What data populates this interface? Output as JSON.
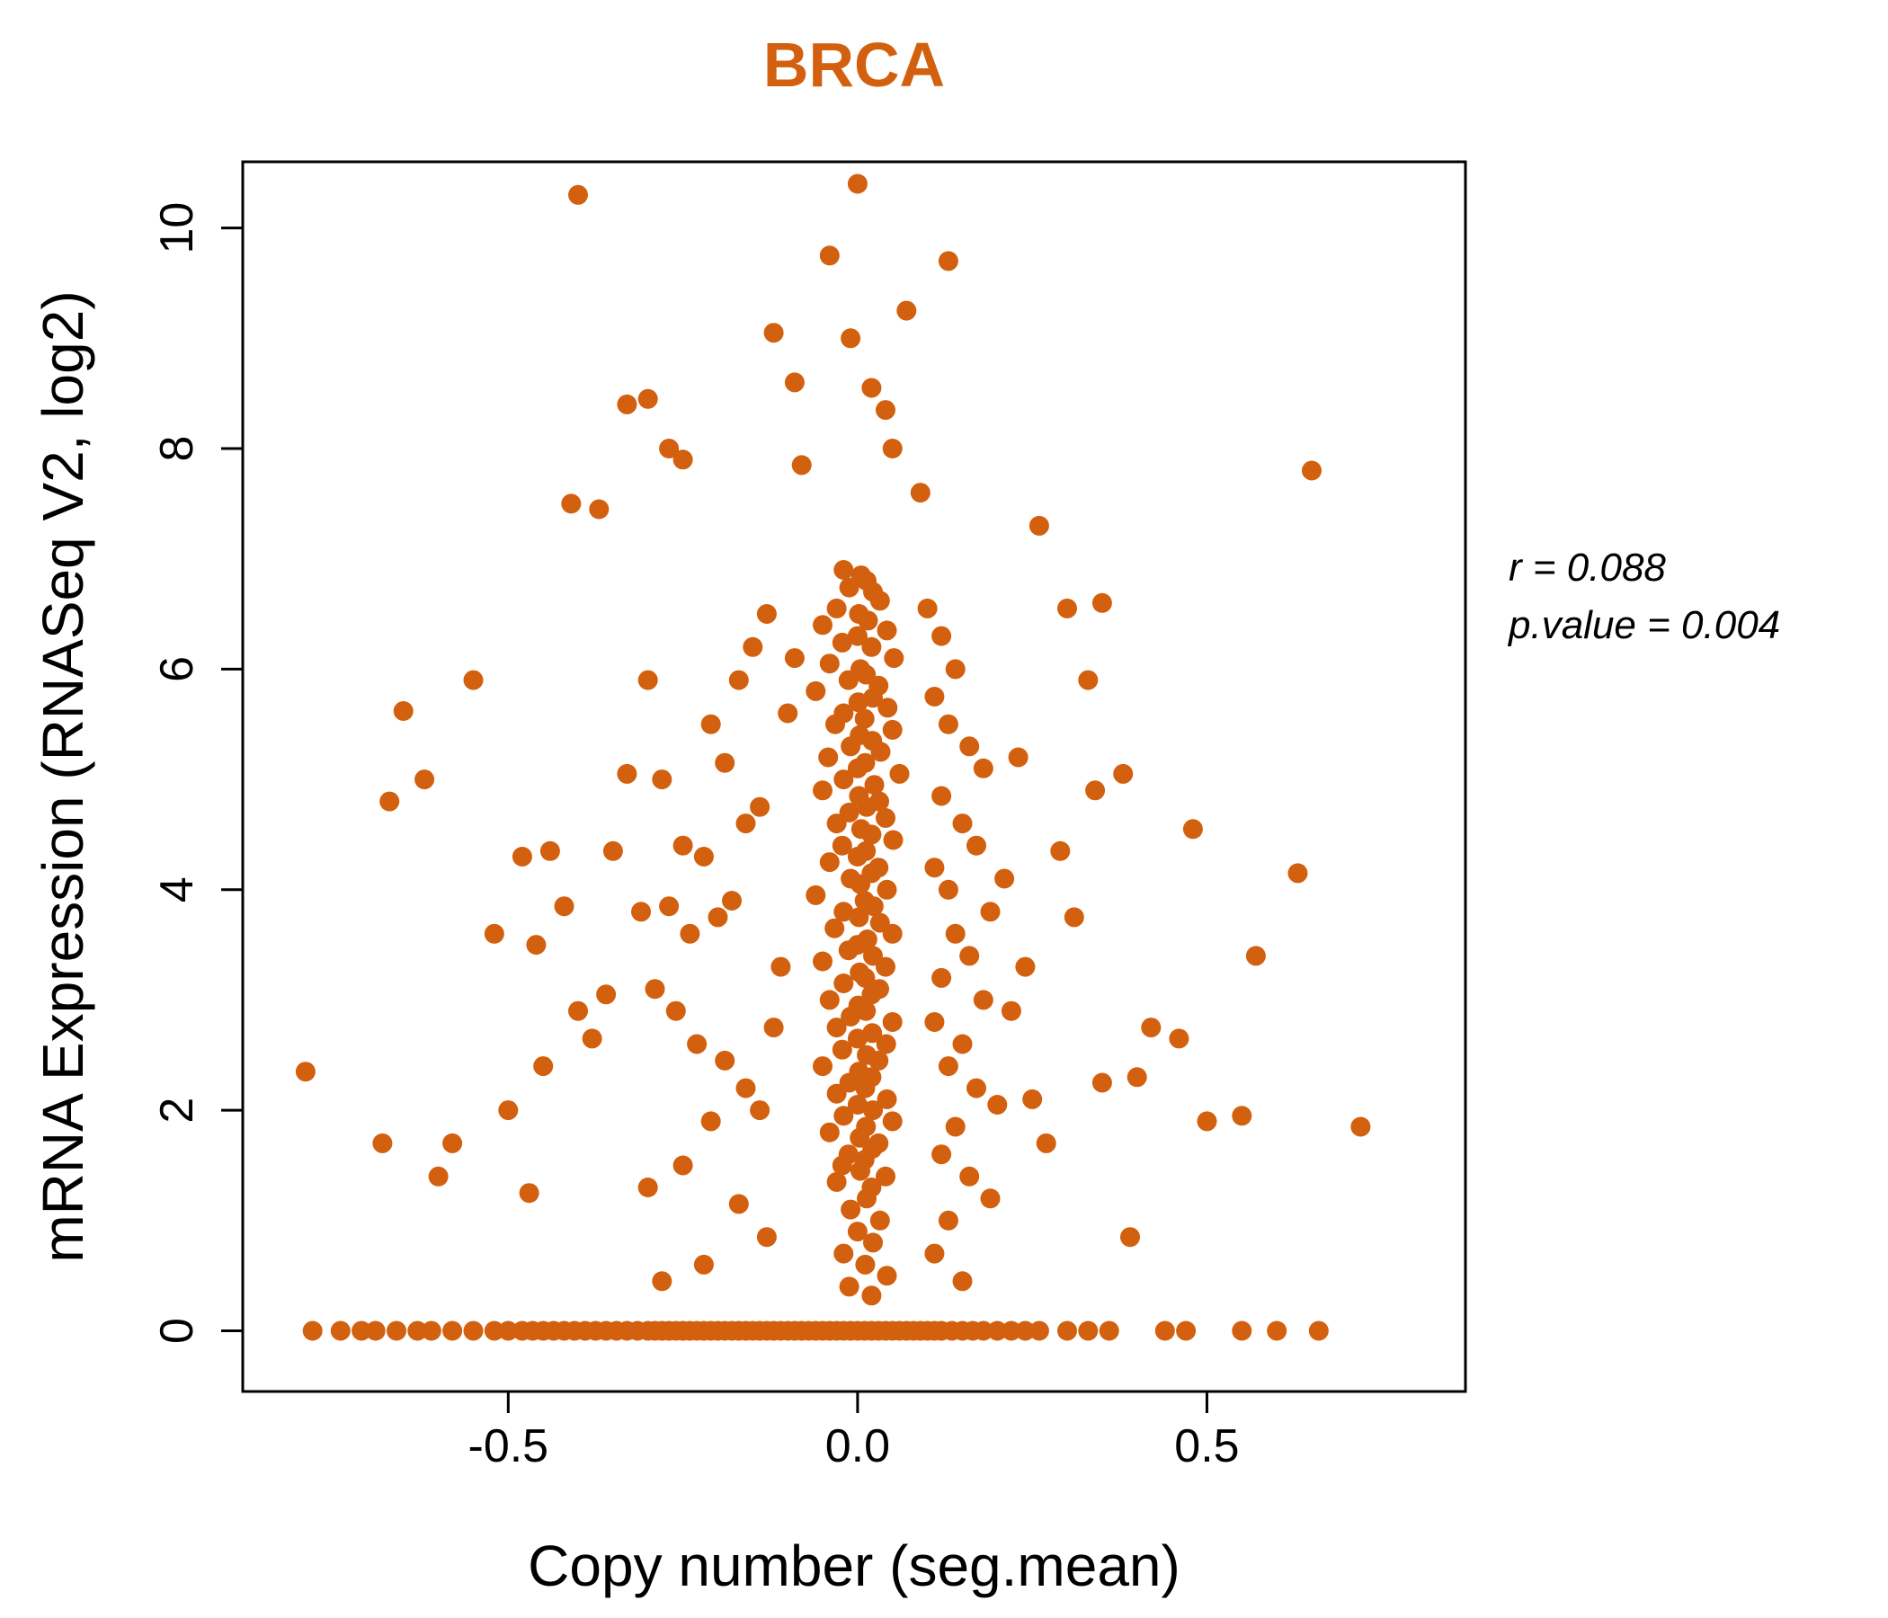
{
  "theme": {
    "accent": "#d2600e",
    "axis_color": "#000000",
    "background": "#ffffff"
  },
  "annotation": {
    "line1": "r = 0.088",
    "line2": "p.value = 0.004"
  },
  "chart_data": {
    "type": "scatter",
    "title": "BRCA",
    "xlabel": "Copy number (seg.mean)",
    "ylabel": "mRNA Expression (RNASeq V2, log2)",
    "xlim": [
      -0.88,
      0.87
    ],
    "ylim": [
      -0.55,
      10.6
    ],
    "xticks": [
      -0.5,
      0.0,
      0.5
    ],
    "xtick_labels": [
      "-0.5",
      "0.0",
      "0.5"
    ],
    "yticks": [
      0,
      2,
      4,
      6,
      8,
      10
    ],
    "ytick_labels": [
      "0",
      "2",
      "4",
      "6",
      "8",
      "10"
    ],
    "grid": false,
    "legend": "none",
    "point_color": "#d2600e",
    "stats": {
      "r": 0.088,
      "p_value": 0.004
    },
    "points": [
      [
        -0.78,
        0
      ],
      [
        -0.74,
        0
      ],
      [
        -0.71,
        0
      ],
      [
        -0.69,
        0
      ],
      [
        -0.66,
        0
      ],
      [
        -0.63,
        0
      ],
      [
        -0.61,
        0
      ],
      [
        -0.58,
        0
      ],
      [
        -0.55,
        0
      ],
      [
        -0.52,
        0
      ],
      [
        -0.5,
        0
      ],
      [
        -0.48,
        0
      ],
      [
        -0.465,
        0
      ],
      [
        -0.45,
        0
      ],
      [
        -0.435,
        0
      ],
      [
        -0.42,
        0
      ],
      [
        -0.405,
        0
      ],
      [
        -0.39,
        0
      ],
      [
        -0.375,
        0
      ],
      [
        -0.36,
        0
      ],
      [
        -0.345,
        0
      ],
      [
        -0.33,
        0
      ],
      [
        -0.315,
        0
      ],
      [
        -0.3,
        0
      ],
      [
        -0.29,
        0
      ],
      [
        -0.28,
        0
      ],
      [
        -0.27,
        0
      ],
      [
        -0.26,
        0
      ],
      [
        -0.25,
        0
      ],
      [
        -0.24,
        0
      ],
      [
        -0.23,
        0
      ],
      [
        -0.22,
        0
      ],
      [
        -0.21,
        0
      ],
      [
        -0.2,
        0
      ],
      [
        -0.19,
        0
      ],
      [
        -0.18,
        0
      ],
      [
        -0.17,
        0
      ],
      [
        -0.16,
        0
      ],
      [
        -0.15,
        0
      ],
      [
        -0.14,
        0
      ],
      [
        -0.13,
        0
      ],
      [
        -0.12,
        0
      ],
      [
        -0.11,
        0
      ],
      [
        -0.1,
        0
      ],
      [
        -0.09,
        0
      ],
      [
        -0.08,
        0
      ],
      [
        -0.07,
        0
      ],
      [
        -0.06,
        0
      ],
      [
        -0.05,
        0
      ],
      [
        -0.04,
        0
      ],
      [
        -0.03,
        0
      ],
      [
        -0.02,
        0
      ],
      [
        -0.01,
        0
      ],
      [
        0,
        0
      ],
      [
        0.01,
        0
      ],
      [
        0.02,
        0
      ],
      [
        0.03,
        0
      ],
      [
        0.04,
        0
      ],
      [
        0.05,
        0
      ],
      [
        0.06,
        0
      ],
      [
        0.07,
        0
      ],
      [
        0.08,
        0
      ],
      [
        0.09,
        0
      ],
      [
        0.1,
        0
      ],
      [
        0.11,
        0
      ],
      [
        0.12,
        0
      ],
      [
        0.135,
        0
      ],
      [
        0.15,
        0
      ],
      [
        0.165,
        0
      ],
      [
        0.18,
        0
      ],
      [
        0.2,
        0
      ],
      [
        0.22,
        0
      ],
      [
        0.24,
        0
      ],
      [
        0.26,
        0
      ],
      [
        0.3,
        0
      ],
      [
        0.33,
        0
      ],
      [
        0.36,
        0
      ],
      [
        0.44,
        0
      ],
      [
        0.47,
        0
      ],
      [
        0.55,
        0
      ],
      [
        0.6,
        0
      ],
      [
        0.66,
        0
      ],
      [
        -0.02,
        6.9
      ],
      [
        0.005,
        6.85
      ],
      [
        0.013,
        6.8
      ],
      [
        -0.012,
        6.74
      ],
      [
        0.022,
        6.7
      ],
      [
        0.032,
        6.62
      ],
      [
        -0.03,
        6.55
      ],
      [
        0.002,
        6.5
      ],
      [
        0.015,
        6.44
      ],
      [
        -0.05,
        6.4
      ],
      [
        0.042,
        6.35
      ],
      [
        0,
        6.3
      ],
      [
        -0.022,
        6.24
      ],
      [
        0.02,
        6.2
      ],
      [
        0.052,
        6.1
      ],
      [
        -0.04,
        6.05
      ],
      [
        0.004,
        6
      ],
      [
        0.012,
        5.95
      ],
      [
        -0.013,
        5.9
      ],
      [
        0.03,
        5.85
      ],
      [
        -0.06,
        5.8
      ],
      [
        0.022,
        5.74
      ],
      [
        0.001,
        5.7
      ],
      [
        0.043,
        5.65
      ],
      [
        -0.02,
        5.6
      ],
      [
        0.01,
        5.55
      ],
      [
        -0.032,
        5.5
      ],
      [
        0.05,
        5.45
      ],
      [
        0.003,
        5.4
      ],
      [
        0.021,
        5.35
      ],
      [
        -0.01,
        5.3
      ],
      [
        0.033,
        5.25
      ],
      [
        -0.042,
        5.2
      ],
      [
        0.011,
        5.15
      ],
      [
        0,
        5.1
      ],
      [
        0.06,
        5.05
      ],
      [
        -0.02,
        5
      ],
      [
        0.024,
        4.95
      ],
      [
        -0.05,
        4.9
      ],
      [
        0.002,
        4.85
      ],
      [
        0.031,
        4.8
      ],
      [
        0.013,
        4.75
      ],
      [
        -0.012,
        4.7
      ],
      [
        0.04,
        4.65
      ],
      [
        -0.03,
        4.6
      ],
      [
        0.005,
        4.55
      ],
      [
        0.02,
        4.5
      ],
      [
        0.051,
        4.45
      ],
      [
        -0.022,
        4.4
      ],
      [
        0.012,
        4.35
      ],
      [
        0,
        4.3
      ],
      [
        -0.04,
        4.25
      ],
      [
        0.03,
        4.2
      ],
      [
        0.02,
        4.15
      ],
      [
        -0.01,
        4.1
      ],
      [
        0.004,
        4.05
      ],
      [
        0.042,
        4
      ],
      [
        -0.06,
        3.95
      ],
      [
        0.01,
        3.9
      ],
      [
        0.023,
        3.85
      ],
      [
        -0.02,
        3.8
      ],
      [
        0.002,
        3.75
      ],
      [
        0.032,
        3.7
      ],
      [
        -0.033,
        3.65
      ],
      [
        0.05,
        3.6
      ],
      [
        0.014,
        3.55
      ],
      [
        0,
        3.5
      ],
      [
        -0.013,
        3.45
      ],
      [
        0.022,
        3.4
      ],
      [
        -0.05,
        3.35
      ],
      [
        0.04,
        3.3
      ],
      [
        0.003,
        3.25
      ],
      [
        0.011,
        3.2
      ],
      [
        -0.02,
        3.15
      ],
      [
        0.031,
        3.1
      ],
      [
        0.02,
        3.05
      ],
      [
        -0.04,
        3
      ],
      [
        0.001,
        2.95
      ],
      [
        0.012,
        2.9
      ],
      [
        -0.01,
        2.85
      ],
      [
        0.05,
        2.8
      ],
      [
        -0.03,
        2.75
      ],
      [
        0.021,
        2.7
      ],
      [
        0,
        2.65
      ],
      [
        0.041,
        2.6
      ],
      [
        -0.022,
        2.55
      ],
      [
        0.013,
        2.5
      ],
      [
        0.03,
        2.45
      ],
      [
        -0.05,
        2.4
      ],
      [
        0.002,
        2.35
      ],
      [
        0.02,
        2.3
      ],
      [
        -0.012,
        2.25
      ],
      [
        0.011,
        2.2
      ],
      [
        -0.03,
        2.15
      ],
      [
        0.042,
        2.1
      ],
      [
        0,
        2.05
      ],
      [
        0.022,
        2
      ],
      [
        -0.02,
        1.95
      ],
      [
        0.05,
        1.9
      ],
      [
        0.012,
        1.85
      ],
      [
        -0.04,
        1.8
      ],
      [
        0.003,
        1.75
      ],
      [
        0.03,
        1.7
      ],
      [
        0.021,
        1.65
      ],
      [
        -0.013,
        1.6
      ],
      [
        0.01,
        1.55
      ],
      [
        -0.022,
        1.5
      ],
      [
        0.004,
        1.45
      ],
      [
        0.04,
        1.4
      ],
      [
        -0.03,
        1.35
      ],
      [
        0.02,
        1.3
      ],
      [
        0.013,
        1.2
      ],
      [
        -0.01,
        1.1
      ],
      [
        0.032,
        1
      ],
      [
        0,
        0.9
      ],
      [
        0.022,
        0.8
      ],
      [
        -0.02,
        0.7
      ],
      [
        0.011,
        0.6
      ],
      [
        0.042,
        0.5
      ],
      [
        -0.012,
        0.4
      ],
      [
        0.02,
        0.32
      ],
      [
        -0.3,
        5.9
      ],
      [
        -0.28,
        5
      ],
      [
        -0.33,
        5.05
      ],
      [
        -0.25,
        4.4
      ],
      [
        -0.22,
        4.3
      ],
      [
        -0.35,
        4.35
      ],
      [
        -0.27,
        3.85
      ],
      [
        -0.31,
        3.8
      ],
      [
        -0.24,
        3.6
      ],
      [
        -0.2,
        3.75
      ],
      [
        -0.18,
        3.9
      ],
      [
        -0.16,
        4.6
      ],
      [
        -0.14,
        4.75
      ],
      [
        -0.19,
        5.15
      ],
      [
        -0.21,
        5.5
      ],
      [
        -0.17,
        5.9
      ],
      [
        -0.15,
        6.2
      ],
      [
        -0.13,
        6.5
      ],
      [
        -0.26,
        2.9
      ],
      [
        -0.29,
        3.1
      ],
      [
        -0.23,
        2.6
      ],
      [
        -0.19,
        2.45
      ],
      [
        -0.16,
        2.2
      ],
      [
        -0.14,
        2
      ],
      [
        -0.21,
        1.9
      ],
      [
        -0.25,
        1.5
      ],
      [
        -0.3,
        1.3
      ],
      [
        -0.17,
        1.15
      ],
      [
        -0.13,
        0.85
      ],
      [
        -0.22,
        0.6
      ],
      [
        -0.28,
        0.45
      ],
      [
        -0.12,
        2.75
      ],
      [
        -0.11,
        3.3
      ],
      [
        -0.1,
        5.6
      ],
      [
        -0.09,
        6.1
      ],
      [
        0.1,
        6.55
      ],
      [
        0.12,
        6.3
      ],
      [
        0.14,
        6
      ],
      [
        0.11,
        5.75
      ],
      [
        0.13,
        5.5
      ],
      [
        0.16,
        5.3
      ],
      [
        0.18,
        5.1
      ],
      [
        0.12,
        4.85
      ],
      [
        0.15,
        4.6
      ],
      [
        0.17,
        4.4
      ],
      [
        0.11,
        4.2
      ],
      [
        0.13,
        4
      ],
      [
        0.19,
        3.8
      ],
      [
        0.14,
        3.6
      ],
      [
        0.16,
        3.4
      ],
      [
        0.12,
        3.2
      ],
      [
        0.18,
        3
      ],
      [
        0.11,
        2.8
      ],
      [
        0.15,
        2.6
      ],
      [
        0.13,
        2.4
      ],
      [
        0.17,
        2.2
      ],
      [
        0.2,
        2.05
      ],
      [
        0.14,
        1.85
      ],
      [
        0.12,
        1.6
      ],
      [
        0.16,
        1.4
      ],
      [
        0.19,
        1.2
      ],
      [
        0.13,
        1
      ],
      [
        0.11,
        0.7
      ],
      [
        0.15,
        0.45
      ],
      [
        0.22,
        2.9
      ],
      [
        0.24,
        3.3
      ],
      [
        0.21,
        4.1
      ],
      [
        0.23,
        5.2
      ],
      [
        0.25,
        2.1
      ],
      [
        0.27,
        1.7
      ],
      [
        -0.65,
        5.62
      ],
      [
        -0.62,
        5
      ],
      [
        -0.67,
        4.8
      ],
      [
        -0.55,
        5.9
      ],
      [
        -0.48,
        4.3
      ],
      [
        -0.44,
        4.35
      ],
      [
        -0.52,
        3.6
      ],
      [
        -0.46,
        3.5
      ],
      [
        -0.42,
        3.85
      ],
      [
        -0.4,
        2.9
      ],
      [
        -0.45,
        2.4
      ],
      [
        -0.5,
        2
      ],
      [
        -0.58,
        1.7
      ],
      [
        -0.47,
        1.25
      ],
      [
        -0.6,
        1.4
      ],
      [
        -0.38,
        2.65
      ],
      [
        -0.36,
        3.05
      ],
      [
        -0.79,
        2.35
      ],
      [
        -0.68,
        1.7
      ],
      [
        -0.41,
        7.5
      ],
      [
        -0.37,
        7.45
      ],
      [
        0,
        10.4
      ],
      [
        -0.4,
        10.3
      ],
      [
        -0.04,
        9.75
      ],
      [
        0.13,
        9.7
      ],
      [
        0.07,
        9.25
      ],
      [
        -0.01,
        9
      ],
      [
        -0.12,
        9.05
      ],
      [
        -0.09,
        8.6
      ],
      [
        0.02,
        8.55
      ],
      [
        0.04,
        8.35
      ],
      [
        -0.3,
        8.45
      ],
      [
        -0.33,
        8.4
      ],
      [
        -0.27,
        8
      ],
      [
        -0.25,
        7.9
      ],
      [
        -0.08,
        7.85
      ],
      [
        0.05,
        8
      ],
      [
        0.09,
        7.6
      ],
      [
        0.65,
        7.8
      ],
      [
        0.26,
        7.3
      ],
      [
        0.35,
        6.6
      ],
      [
        0.3,
        6.55
      ],
      [
        0.33,
        5.9
      ],
      [
        0.38,
        5.05
      ],
      [
        0.34,
        4.9
      ],
      [
        0.48,
        4.55
      ],
      [
        0.42,
        2.75
      ],
      [
        0.46,
        2.65
      ],
      [
        0.4,
        2.3
      ],
      [
        0.35,
        2.25
      ],
      [
        0.57,
        3.4
      ],
      [
        0.63,
        4.15
      ],
      [
        0.55,
        1.95
      ],
      [
        0.72,
        1.85
      ],
      [
        0.5,
        1.9
      ],
      [
        0.39,
        0.85
      ],
      [
        0.29,
        4.35
      ],
      [
        0.31,
        3.75
      ]
    ]
  }
}
